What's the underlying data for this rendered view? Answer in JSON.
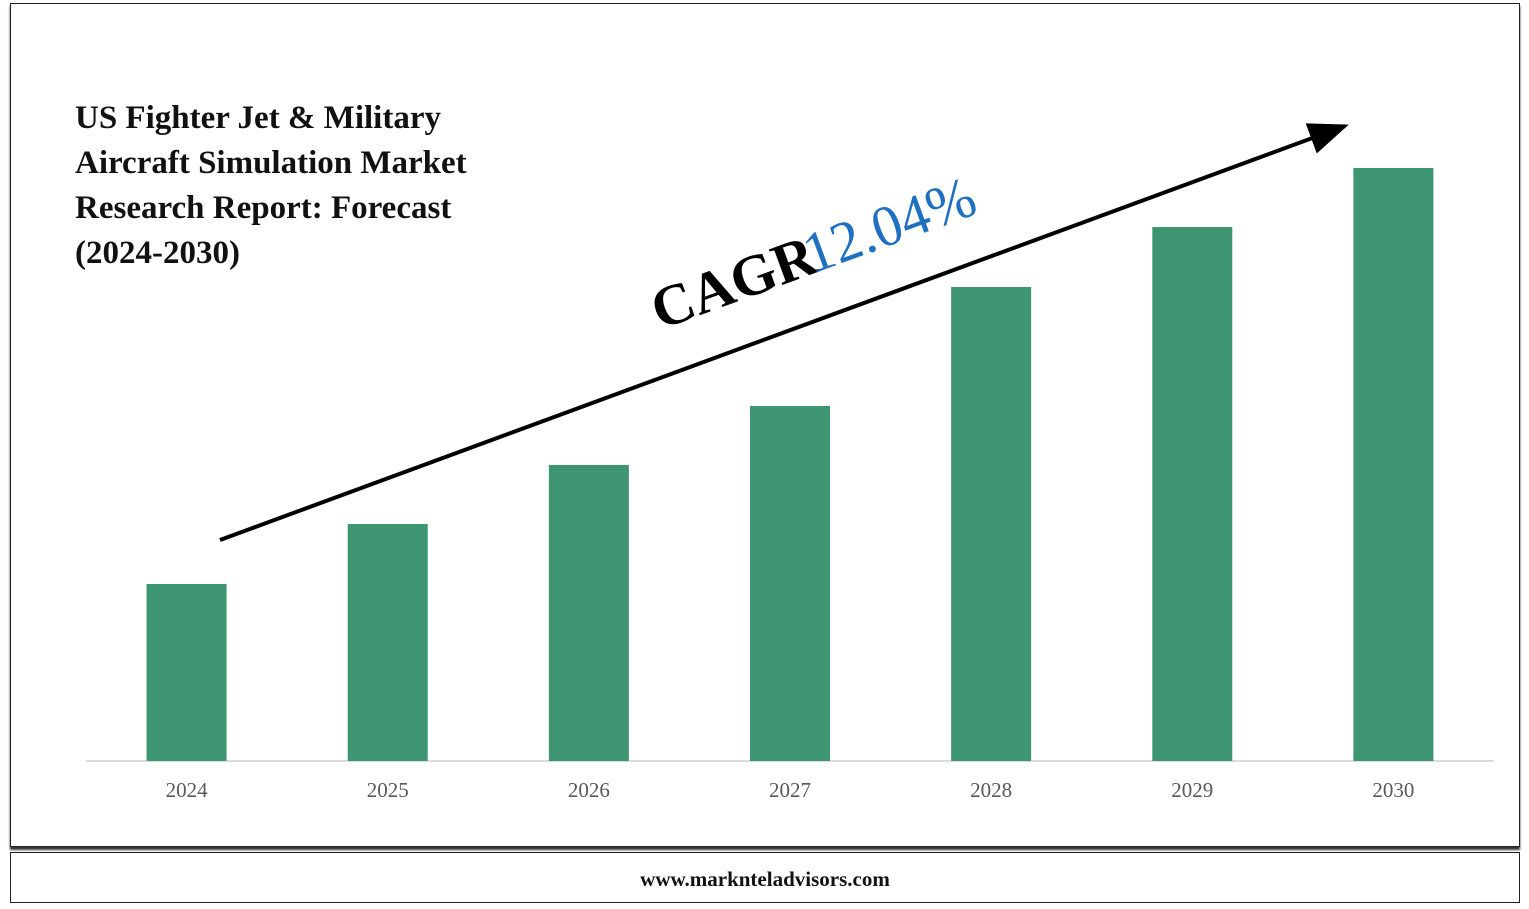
{
  "chart_data": {
    "type": "bar",
    "title": "US Fighter Jet & Military Aircraft Simulation Market Research Report: Forecast (2024-2030)",
    "annotation": {
      "label": "CAGR",
      "value": "12.04%"
    },
    "categories": [
      "2024",
      "2025",
      "2026",
      "2027",
      "2028",
      "2029",
      "2030"
    ],
    "values": [
      177,
      237,
      296,
      355,
      474,
      534,
      593
    ],
    "color": "#3d9671",
    "ylim": [
      0,
      661
    ],
    "grid": false
  },
  "footer": "www.marknteladvisors.com"
}
